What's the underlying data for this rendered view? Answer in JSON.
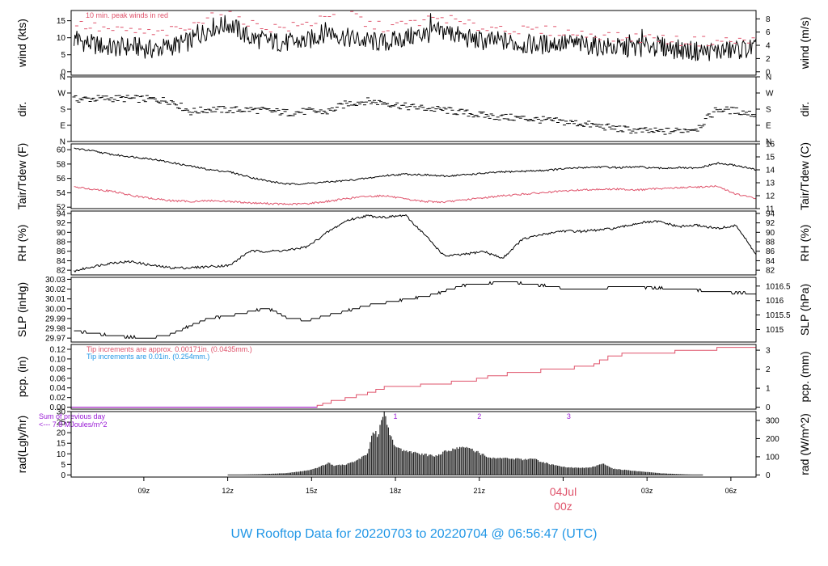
{
  "title": "UW Rooftop Data for 20220703  to  20220704 @ 06:56:47  (UTC)",
  "colors": {
    "line": "#000000",
    "red": "#DF536B",
    "blue": "#2297E6",
    "purple": "#9A1BD6",
    "title": "#2297E6"
  },
  "x_axis": {
    "range_hours": [
      6.4,
      30.9
    ],
    "ticks": [
      {
        "hour": 9,
        "label": "09z"
      },
      {
        "hour": 12,
        "label": "12z"
      },
      {
        "hour": 15,
        "label": "15z"
      },
      {
        "hour": 18,
        "label": "18z"
      },
      {
        "hour": 21,
        "label": "21z"
      },
      {
        "hour": 27,
        "label": "03z"
      },
      {
        "hour": 30,
        "label": "06z"
      }
    ],
    "date_marker": {
      "hour": 24,
      "date": "04Jul",
      "time": "00z"
    }
  },
  "chart_data": [
    {
      "id": "wind",
      "type": "line",
      "ylabel": "wind (kts)",
      "ylabel_right": "wind (m/s)",
      "ylim": [
        -1,
        18
      ],
      "yticks": [
        0,
        5,
        10,
        15
      ],
      "right_ticks": [
        {
          "v": 0,
          "label": "0"
        },
        {
          "v": 3.89,
          "label": "2"
        },
        {
          "v": 7.78,
          "label": "4"
        },
        {
          "v": 11.66,
          "label": "6"
        },
        {
          "v": 15.55,
          "label": "8"
        }
      ],
      "annotation": "10 min. peak winds in red",
      "series": [
        {
          "role": "mean",
          "color": "#000000",
          "x_start": 6.5,
          "x_end": 30.9,
          "y": [
            9.5,
            8,
            7,
            7.5,
            6.5,
            7.5,
            9,
            13,
            14,
            10,
            9,
            8.5,
            9,
            12,
            10,
            9,
            8.5,
            10,
            11,
            12,
            10,
            9,
            9,
            8,
            8,
            8.5,
            8,
            7.5,
            7,
            7,
            7.5,
            6.5,
            6,
            6,
            6.5,
            7
          ]
        },
        {
          "role": "peak",
          "color": "#DF536B",
          "x_start": 6.6,
          "x_end": 30.8,
          "y": [
            14,
            13,
            12,
            12,
            11,
            12,
            13,
            18,
            18,
            14,
            13,
            13,
            14,
            17,
            18.5,
            14,
            13,
            14,
            15,
            16,
            14,
            13,
            13,
            12,
            12,
            12,
            11,
            11,
            10,
            10,
            10,
            9,
            9,
            9,
            9,
            9
          ]
        }
      ]
    },
    {
      "id": "dir",
      "type": "scatter",
      "ylabel": "dir.",
      "ylabel_right": "dir.",
      "ylim": [
        0,
        360
      ],
      "yticks_labels": [
        {
          "v": 0,
          "label": "N"
        },
        {
          "v": 90,
          "label": "E"
        },
        {
          "v": 180,
          "label": "S"
        },
        {
          "v": 270,
          "label": "W"
        },
        {
          "v": 360,
          "label": "N"
        }
      ],
      "series": [
        {
          "color": "#000000",
          "x_start": 6.5,
          "x_end": 30.9,
          "y": [
            235,
            238,
            240,
            238,
            235,
            225,
            165,
            180,
            175,
            178,
            170,
            160,
            168,
            165,
            210,
            225,
            215,
            195,
            185,
            175,
            160,
            145,
            135,
            130,
            120,
            110,
            100,
            85,
            70,
            60,
            55,
            60,
            75,
            180,
            170,
            150
          ]
        }
      ]
    },
    {
      "id": "temp",
      "type": "line",
      "ylabel": "Tair/Tdew (F)",
      "ylabel_right": "Tair/Tdew (C)",
      "ylim": [
        51.8,
        60.8
      ],
      "yticks": [
        52,
        54,
        56,
        58,
        60
      ],
      "right_ticks": [
        {
          "v": 51.8,
          "label": "11"
        },
        {
          "v": 53.6,
          "label": "12"
        },
        {
          "v": 55.4,
          "label": "13"
        },
        {
          "v": 57.2,
          "label": "14"
        },
        {
          "v": 59,
          "label": "15"
        },
        {
          "v": 60.8,
          "label": "16"
        }
      ],
      "series": [
        {
          "role": "air",
          "color": "#000000",
          "x_start": 6.5,
          "x_end": 30.9,
          "y": [
            60.2,
            59.8,
            59.3,
            59,
            58.7,
            58.2,
            57.7,
            57.2,
            56.9,
            56.2,
            55.6,
            55.2,
            55.3,
            55.5,
            55.7,
            56,
            56.4,
            56.6,
            56.5,
            56.3,
            56.5,
            56.7,
            56.9,
            57,
            57.1,
            57.3,
            57.5,
            57.6,
            57.5,
            57.6,
            57.4,
            57.5,
            57.4,
            58.1,
            57.8,
            57.2
          ]
        },
        {
          "role": "dew",
          "color": "#DF536B",
          "x_start": 6.5,
          "x_end": 30.9,
          "y": [
            54.8,
            54.5,
            54.2,
            53.6,
            53.2,
            52.9,
            52.8,
            52.9,
            52.8,
            52.6,
            52.5,
            52.4,
            52.5,
            52.8,
            53.2,
            53.5,
            53.6,
            53.1,
            52.8,
            52.7,
            53,
            53.3,
            53.6,
            53.8,
            54,
            54.2,
            54.4,
            54.5,
            54.5,
            54.4,
            54.6,
            54.7,
            54.8,
            54.9,
            53.8,
            53.2
          ]
        }
      ]
    },
    {
      "id": "rh",
      "type": "line",
      "ylabel": "RH (%)",
      "ylabel_right": "RH (%)",
      "ylim": [
        81,
        94.5
      ],
      "yticks": [
        82,
        84,
        86,
        88,
        90,
        92,
        94
      ],
      "series": [
        {
          "color": "#000000",
          "x_start": 6.5,
          "x_end": 30.9,
          "y": [
            81.8,
            82.8,
            83.6,
            83.8,
            83,
            82.5,
            82.5,
            82.8,
            83,
            86,
            86,
            86.2,
            87,
            90,
            92.5,
            93.5,
            93.2,
            93.6,
            89.5,
            85,
            85.3,
            86,
            84.5,
            88.5,
            89.5,
            90.3,
            90.2,
            90.5,
            91,
            92,
            92.3,
            91.2,
            91.5,
            90.8,
            91.4,
            85.3
          ]
        }
      ]
    },
    {
      "id": "slp",
      "type": "line",
      "ylabel": "SLP (inHg)",
      "ylabel_right": "SLP (hPa)",
      "ylim": [
        29.966,
        30.032
      ],
      "yticks": [
        29.97,
        29.98,
        29.99,
        30.0,
        30.01,
        30.02,
        30.03
      ],
      "right_ticks": [
        {
          "v": 29.9788,
          "label": "1015"
        },
        {
          "v": 29.9936,
          "label": "1015.5"
        },
        {
          "v": 30.0083,
          "label": "1016"
        },
        {
          "v": 30.0231,
          "label": "1016.5"
        }
      ],
      "series": [
        {
          "color": "#000000",
          "x_start": 6.5,
          "x_end": 30.9,
          "y": [
            29.978,
            29.975,
            29.972,
            29.971,
            29.97,
            29.974,
            29.983,
            29.99,
            29.993,
            29.997,
            30.0,
            29.99,
            29.988,
            29.993,
            29.998,
            30.003,
            30.006,
            30.01,
            30.012,
            30.018,
            30.024,
            30.025,
            30.028,
            30.026,
            30.024,
            30.021,
            30.019,
            30.021,
            30.022,
            30.022,
            30.021,
            30.02,
            30.019,
            30.017,
            30.016,
            30.016
          ]
        }
      ]
    },
    {
      "id": "pcp",
      "type": "line",
      "ylabel": "pcp. (in)",
      "ylabel_right": "pcp. (mm)",
      "ylim": [
        -0.004,
        0.13
      ],
      "yticks": [
        0.0,
        0.02,
        0.04,
        0.06,
        0.08,
        0.1,
        0.12
      ],
      "right_ticks": [
        {
          "v": 0,
          "label": "0"
        },
        {
          "v": 0.03937,
          "label": "1"
        },
        {
          "v": 0.07874,
          "label": "2"
        },
        {
          "v": 0.11811,
          "label": "3"
        }
      ],
      "annotations": [
        {
          "text": "Tip increments are approx. 0.00171in. (0.0435mm.)",
          "color": "#DF536B"
        },
        {
          "text": "Tip increments are 0.01in. (0.254mm.)",
          "color": "#2297E6"
        }
      ],
      "series": [
        {
          "role": "cumulative",
          "color": "#DF536B",
          "steps": [
            [
              6.4,
              0
            ],
            [
              15.2,
              0
            ],
            [
              15.2,
              0.004
            ],
            [
              15.4,
              0.008
            ],
            [
              15.7,
              0.014
            ],
            [
              16.2,
              0.02
            ],
            [
              16.6,
              0.026
            ],
            [
              17.0,
              0.031
            ],
            [
              17.3,
              0.037
            ],
            [
              17.6,
              0.043
            ],
            [
              18.9,
              0.048
            ],
            [
              20.0,
              0.054
            ],
            [
              20.9,
              0.06
            ],
            [
              21.3,
              0.065
            ],
            [
              22.0,
              0.072
            ],
            [
              23.2,
              0.079
            ],
            [
              24.4,
              0.085
            ],
            [
              25.1,
              0.09
            ],
            [
              25.3,
              0.098
            ],
            [
              25.6,
              0.106
            ],
            [
              26.1,
              0.112
            ],
            [
              28.0,
              0.118
            ],
            [
              29.5,
              0.124
            ],
            [
              30.9,
              0.124
            ]
          ]
        },
        {
          "role": "baseline",
          "color": "#9A1BD6",
          "steps": [
            [
              6.4,
              0
            ],
            [
              15.2,
              0
            ]
          ]
        }
      ]
    },
    {
      "id": "rad",
      "type": "area",
      "ylabel": "rad(Lgly/hr)",
      "ylabel_right": "rad (W/m^2)",
      "ylim": [
        -1,
        30
      ],
      "yticks": [
        0,
        5,
        10,
        15,
        20,
        25,
        30
      ],
      "right_ticks": [
        {
          "v": 0,
          "label": "0"
        },
        {
          "v": 8.6,
          "label": "100"
        },
        {
          "v": 17.2,
          "label": "200"
        },
        {
          "v": 25.8,
          "label": "300"
        }
      ],
      "sum_text": [
        "Sum of previous day",
        "<--- 7.8 MJoules/m^2"
      ],
      "peak_labels": [
        {
          "hour": 18.0,
          "label": "1"
        },
        {
          "hour": 21.0,
          "label": "2"
        },
        {
          "hour": 24.2,
          "label": "3"
        }
      ],
      "series": [
        {
          "color": "#222222",
          "points": [
            [
              12,
              0
            ],
            [
              13,
              0.3
            ],
            [
              14,
              0.8
            ],
            [
              14.5,
              1.5
            ],
            [
              15,
              2.5
            ],
            [
              15.3,
              4
            ],
            [
              15.6,
              5.8
            ],
            [
              15.8,
              4.5
            ],
            [
              16.2,
              5
            ],
            [
              16.6,
              7
            ],
            [
              17.0,
              10
            ],
            [
              17.2,
              21
            ],
            [
              17.4,
              19
            ],
            [
              17.5,
              28
            ],
            [
              17.6,
              31
            ],
            [
              17.8,
              20
            ],
            [
              18.0,
              13
            ],
            [
              18.5,
              11
            ],
            [
              19.0,
              10
            ],
            [
              19.4,
              9
            ],
            [
              19.8,
              11.5
            ],
            [
              20.2,
              13
            ],
            [
              20.5,
              13
            ],
            [
              20.8,
              12
            ],
            [
              21.0,
              10.5
            ],
            [
              21.5,
              8
            ],
            [
              22.0,
              8
            ],
            [
              22.5,
              7.5
            ],
            [
              23.0,
              7.5
            ],
            [
              23.3,
              6
            ],
            [
              23.6,
              5
            ],
            [
              24.0,
              4
            ],
            [
              24.4,
              3.5
            ],
            [
              24.8,
              3.5
            ],
            [
              25.0,
              3.6
            ],
            [
              25.4,
              5.5
            ],
            [
              25.8,
              3
            ],
            [
              26.5,
              2
            ],
            [
              27.5,
              0.8
            ],
            [
              28.5,
              0.2
            ],
            [
              29.0,
              0
            ]
          ]
        }
      ]
    }
  ]
}
